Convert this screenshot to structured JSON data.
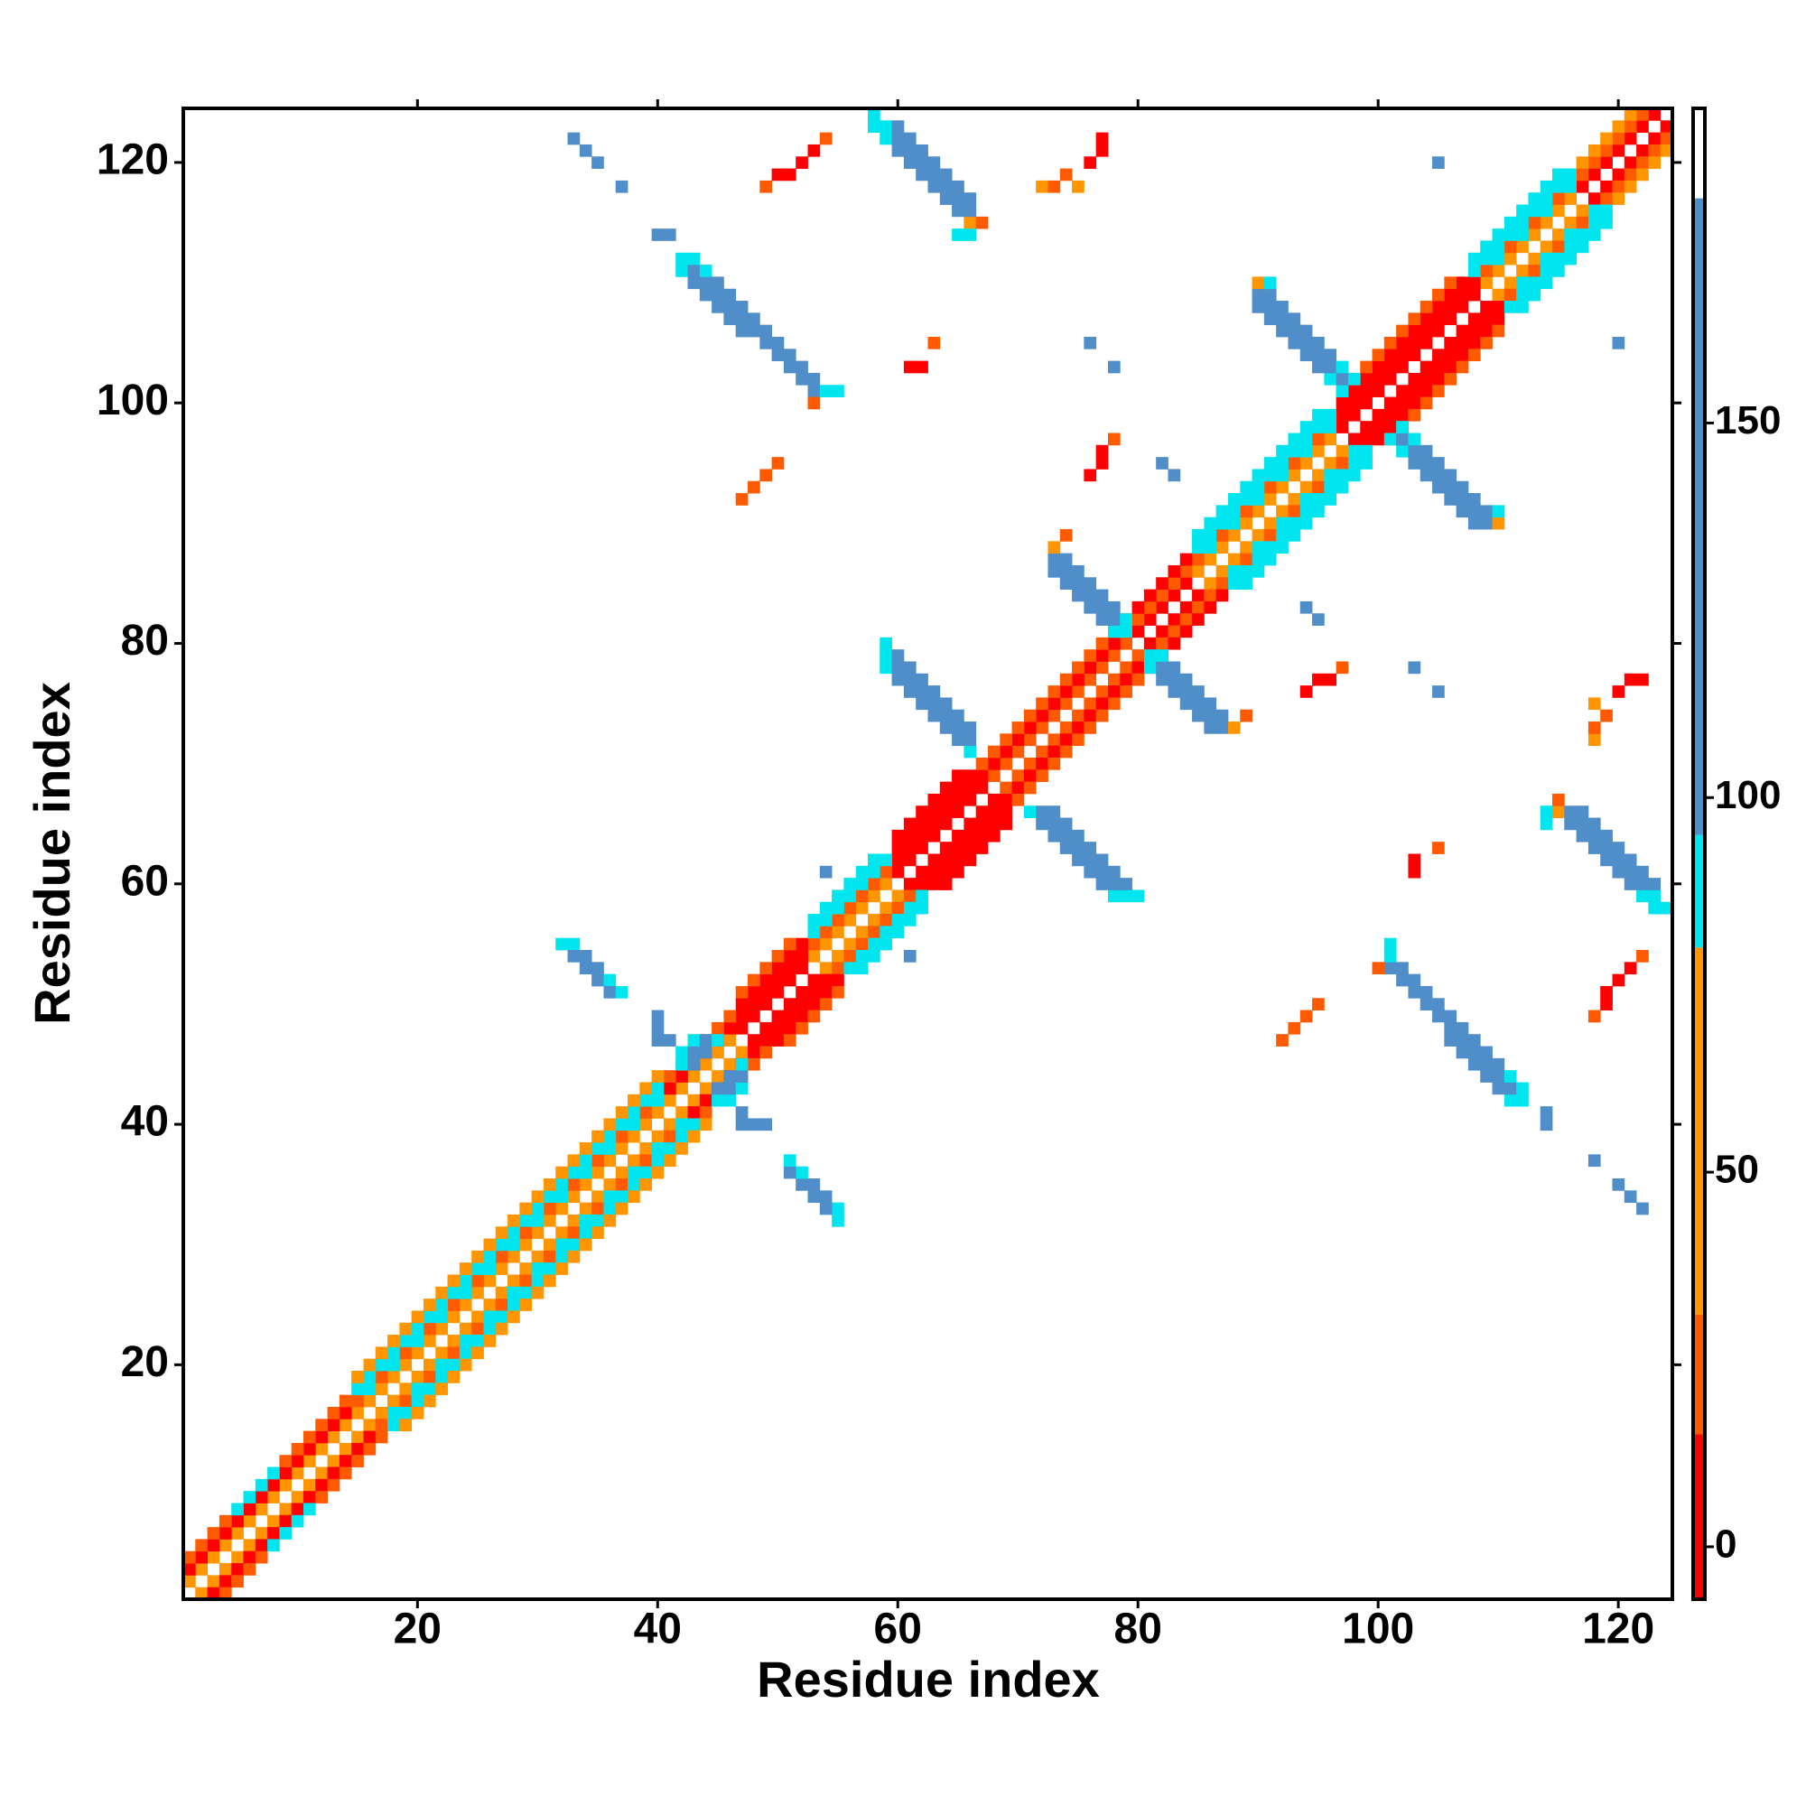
{
  "chart_data": {
    "type": "heatmap",
    "xlabel": "Residue index",
    "ylabel": "Residue index",
    "xlim": [
      0.5,
      124.5
    ],
    "ylim": [
      0.5,
      124.5
    ],
    "xticks": [
      20,
      40,
      60,
      80,
      100,
      120
    ],
    "yticks": [
      20,
      40,
      60,
      80,
      100,
      120
    ],
    "symmetric": true,
    "clim": [
      -7,
      192
    ],
    "cticks": [
      0,
      50,
      100,
      150
    ],
    "colorscale": [
      {
        "min": -7,
        "max": 15,
        "color": "#ff0000"
      },
      {
        "min": 15,
        "max": 31,
        "color": "#ff5a00"
      },
      {
        "min": 31,
        "max": 80,
        "color": "#ff9500"
      },
      {
        "min": 80,
        "max": 95,
        "color": "#00e5ee"
      },
      {
        "min": 95,
        "max": 180,
        "color": "#4f8ec9"
      },
      {
        "min": 180,
        "max": 192,
        "color": "#ffffff"
      }
    ],
    "bands": [
      {
        "offset": 1,
        "values": [
          50,
          50,
          50,
          50,
          50,
          50,
          50,
          50,
          50,
          50,
          50,
          50,
          50,
          50,
          50,
          50,
          50,
          50,
          50,
          50,
          50,
          50,
          50,
          50,
          50,
          50,
          50,
          50,
          50,
          50,
          50,
          50,
          50,
          50,
          50,
          50,
          50,
          50,
          50,
          50,
          50,
          50,
          50,
          50,
          50,
          50,
          5,
          5,
          5,
          5,
          5,
          5,
          50,
          50,
          50,
          50,
          50,
          50,
          50,
          5,
          5,
          5,
          5,
          5,
          5,
          5,
          5,
          25,
          25,
          25,
          25,
          25,
          25,
          25,
          25,
          25,
          25,
          25,
          25,
          5,
          5,
          5,
          5,
          5,
          50,
          50,
          50,
          50,
          50,
          50,
          50,
          50,
          50,
          50,
          50,
          50,
          5,
          5,
          5,
          5,
          5,
          5,
          5,
          5,
          5,
          5,
          5,
          5,
          50,
          50,
          50,
          50,
          50,
          50,
          50,
          50,
          5,
          5,
          5,
          5,
          5,
          5,
          5
        ]
      },
      {
        "offset": 2,
        "values": [
          5,
          5,
          5,
          5,
          5,
          5,
          5,
          5,
          5,
          5,
          5,
          5,
          5,
          5,
          25,
          90,
          25,
          90,
          25,
          90,
          25,
          90,
          25,
          90,
          25,
          90,
          25,
          90,
          25,
          90,
          25,
          90,
          25,
          90,
          25,
          90,
          25,
          90,
          25,
          90,
          5,
          5,
          5,
          5,
          5,
          5,
          5,
          5,
          5,
          5,
          5,
          5,
          25,
          25,
          25,
          25,
          25,
          25,
          25,
          5,
          5,
          5,
          5,
          5,
          5,
          5,
          5,
          5,
          5,
          5,
          5,
          5,
          5,
          5,
          5,
          5,
          5,
          5,
          5,
          25,
          25,
          25,
          25,
          25,
          25,
          90,
          25,
          90,
          25,
          90,
          25,
          90,
          25,
          90,
          25,
          90,
          5,
          5,
          5,
          5,
          5,
          5,
          5,
          5,
          5,
          5,
          5,
          5,
          25,
          90,
          25,
          90,
          25,
          90,
          25,
          90,
          25,
          25,
          25,
          25,
          25,
          25
        ]
      },
      {
        "offset": 3,
        "values": [
          25,
          25,
          25,
          25,
          90,
          90,
          90,
          90,
          25,
          25,
          25,
          25,
          25,
          25,
          90,
          90,
          90,
          90,
          90,
          90,
          90,
          90,
          90,
          90,
          90,
          90,
          90,
          90,
          90,
          90,
          90,
          90,
          90,
          90,
          90,
          90,
          90,
          90,
          90,
          90,
          25,
          25,
          25,
          25,
          25,
          25,
          5,
          5,
          5,
          5,
          5,
          5,
          90,
          90,
          90,
          90,
          90,
          90,
          90,
          5,
          5,
          5,
          5,
          5,
          5,
          5,
          25,
          25,
          25,
          25,
          25,
          25,
          25,
          25,
          25,
          25,
          25,
          25,
          25,
          5,
          5,
          5,
          5,
          5,
          90,
          90,
          90,
          90,
          90,
          90,
          90,
          90,
          90,
          90,
          90,
          90,
          5,
          5,
          5,
          5,
          5,
          5,
          5,
          5,
          5,
          5,
          5,
          90,
          90,
          90,
          90,
          90,
          90,
          90,
          90,
          90,
          50,
          50,
          50,
          50,
          50
        ]
      },
      {
        "offset": 4,
        "values": [
          null,
          null,
          null,
          null,
          null,
          null,
          null,
          null,
          null,
          null,
          null,
          null,
          null,
          null,
          50,
          50,
          50,
          50,
          50,
          50,
          50,
          50,
          50,
          50,
          50,
          50,
          50,
          50,
          50,
          50,
          50,
          50,
          50,
          50,
          50,
          50,
          50,
          50,
          50,
          50,
          null,
          null,
          null,
          null,
          null,
          null,
          25,
          25,
          25,
          25,
          25,
          null,
          90,
          90,
          90,
          90,
          90,
          90,
          null,
          5,
          5,
          5,
          5,
          5,
          5,
          null,
          null,
          null,
          null,
          null,
          null,
          null,
          null,
          null,
          null,
          null,
          null,
          null,
          null,
          null,
          null,
          null,
          null,
          null,
          90,
          90,
          90,
          90,
          90,
          90,
          90,
          90,
          90,
          90,
          90,
          null,
          25,
          25,
          25,
          25,
          25,
          25,
          25,
          25,
          25,
          25,
          null,
          90,
          90,
          90,
          90,
          90,
          90,
          90,
          90,
          null,
          null,
          null,
          null,
          null
        ]
      }
    ],
    "contacts": [
      [
        42,
        45,
        90
      ],
      [
        42,
        46,
        90
      ],
      [
        43,
        45,
        130
      ],
      [
        43,
        46,
        130
      ],
      [
        43,
        47,
        90
      ],
      [
        44,
        46,
        130
      ],
      [
        44,
        47,
        130
      ],
      [
        45,
        47,
        90
      ],
      [
        40,
        47,
        130
      ],
      [
        40,
        48,
        130
      ],
      [
        40,
        49,
        130
      ],
      [
        41,
        47,
        130
      ],
      [
        32,
        55,
        90
      ],
      [
        33,
        55,
        90
      ],
      [
        33,
        54,
        130
      ],
      [
        34,
        54,
        130
      ],
      [
        34,
        53,
        130
      ],
      [
        35,
        53,
        130
      ],
      [
        35,
        52,
        130
      ],
      [
        36,
        52,
        90
      ],
      [
        36,
        51,
        130
      ],
      [
        37,
        51,
        90
      ],
      [
        59,
        78,
        90
      ],
      [
        59,
        79,
        90
      ],
      [
        59,
        80,
        90
      ],
      [
        60,
        77,
        130
      ],
      [
        60,
        78,
        130
      ],
      [
        60,
        79,
        130
      ],
      [
        61,
        76,
        130
      ],
      [
        61,
        77,
        130
      ],
      [
        61,
        78,
        130
      ],
      [
        62,
        75,
        130
      ],
      [
        62,
        76,
        130
      ],
      [
        62,
        77,
        130
      ],
      [
        63,
        74,
        130
      ],
      [
        63,
        75,
        130
      ],
      [
        63,
        76,
        130
      ],
      [
        64,
        73,
        130
      ],
      [
        64,
        74,
        130
      ],
      [
        64,
        75,
        130
      ],
      [
        65,
        72,
        130
      ],
      [
        65,
        73,
        130
      ],
      [
        65,
        74,
        130
      ],
      [
        66,
        71,
        90
      ],
      [
        66,
        72,
        130
      ],
      [
        66,
        73,
        130
      ],
      [
        73,
        86,
        130
      ],
      [
        73,
        87,
        130
      ],
      [
        73,
        88,
        50
      ],
      [
        74,
        85,
        130
      ],
      [
        74,
        86,
        130
      ],
      [
        74,
        87,
        130
      ],
      [
        74,
        89,
        25
      ],
      [
        75,
        84,
        130
      ],
      [
        75,
        85,
        130
      ],
      [
        75,
        86,
        130
      ],
      [
        76,
        83,
        130
      ],
      [
        76,
        84,
        130
      ],
      [
        76,
        85,
        130
      ],
      [
        77,
        82,
        130
      ],
      [
        77,
        83,
        130
      ],
      [
        77,
        84,
        130
      ],
      [
        78,
        81,
        90
      ],
      [
        78,
        82,
        130
      ],
      [
        78,
        83,
        130
      ],
      [
        79,
        81,
        90
      ],
      [
        79,
        82,
        90
      ],
      [
        90,
        108,
        130
      ],
      [
        90,
        109,
        130
      ],
      [
        90,
        110,
        50
      ],
      [
        91,
        107,
        130
      ],
      [
        91,
        108,
        130
      ],
      [
        91,
        109,
        130
      ],
      [
        91,
        110,
        90
      ],
      [
        92,
        106,
        130
      ],
      [
        92,
        107,
        130
      ],
      [
        92,
        108,
        130
      ],
      [
        93,
        105,
        130
      ],
      [
        93,
        106,
        130
      ],
      [
        93,
        107,
        130
      ],
      [
        94,
        104,
        130
      ],
      [
        94,
        105,
        130
      ],
      [
        94,
        106,
        130
      ],
      [
        95,
        103,
        130
      ],
      [
        95,
        104,
        130
      ],
      [
        95,
        105,
        130
      ],
      [
        96,
        102,
        90
      ],
      [
        96,
        103,
        130
      ],
      [
        96,
        104,
        130
      ],
      [
        97,
        101,
        90
      ],
      [
        97,
        102,
        130
      ],
      [
        97,
        103,
        90
      ],
      [
        98,
        102,
        90
      ],
      [
        42,
        111,
        90
      ],
      [
        42,
        112,
        90
      ],
      [
        43,
        110,
        130
      ],
      [
        43,
        111,
        130
      ],
      [
        43,
        112,
        90
      ],
      [
        44,
        109,
        130
      ],
      [
        44,
        110,
        130
      ],
      [
        44,
        111,
        90
      ],
      [
        45,
        108,
        130
      ],
      [
        45,
        109,
        130
      ],
      [
        45,
        110,
        130
      ],
      [
        46,
        107,
        130
      ],
      [
        46,
        108,
        130
      ],
      [
        46,
        109,
        130
      ],
      [
        47,
        106,
        130
      ],
      [
        47,
        107,
        130
      ],
      [
        47,
        108,
        130
      ],
      [
        48,
        106,
        130
      ],
      [
        48,
        107,
        130
      ],
      [
        49,
        105,
        130
      ],
      [
        49,
        106,
        130
      ],
      [
        50,
        104,
        130
      ],
      [
        50,
        105,
        130
      ],
      [
        51,
        103,
        130
      ],
      [
        51,
        104,
        130
      ],
      [
        52,
        102,
        130
      ],
      [
        52,
        103,
        130
      ],
      [
        53,
        101,
        130
      ],
      [
        53,
        102,
        130
      ],
      [
        54,
        101,
        90
      ],
      [
        55,
        101,
        90
      ],
      [
        53,
        100,
        25
      ],
      [
        58,
        123,
        90
      ],
      [
        58,
        124,
        90
      ],
      [
        59,
        122,
        90
      ],
      [
        59,
        123,
        90
      ],
      [
        60,
        121,
        130
      ],
      [
        60,
        122,
        130
      ],
      [
        60,
        123,
        130
      ],
      [
        61,
        120,
        130
      ],
      [
        61,
        121,
        130
      ],
      [
        61,
        122,
        130
      ],
      [
        62,
        119,
        130
      ],
      [
        62,
        120,
        130
      ],
      [
        62,
        121,
        130
      ],
      [
        63,
        118,
        130
      ],
      [
        63,
        119,
        130
      ],
      [
        63,
        120,
        130
      ],
      [
        64,
        117,
        130
      ],
      [
        64,
        118,
        130
      ],
      [
        64,
        119,
        130
      ],
      [
        65,
        116,
        130
      ],
      [
        65,
        117,
        130
      ],
      [
        65,
        118,
        130
      ],
      [
        66,
        115,
        50
      ],
      [
        66,
        116,
        130
      ],
      [
        66,
        117,
        130
      ],
      [
        65,
        114,
        90
      ],
      [
        66,
        114,
        90
      ],
      [
        67,
        115,
        25
      ],
      [
        33,
        122,
        130
      ],
      [
        34,
        121,
        130
      ],
      [
        35,
        120,
        130
      ],
      [
        37,
        118,
        130
      ],
      [
        40,
        114,
        130
      ],
      [
        41,
        114,
        130
      ],
      [
        49,
        118,
        25
      ],
      [
        50,
        119,
        5
      ],
      [
        51,
        119,
        5
      ],
      [
        52,
        120,
        5
      ],
      [
        53,
        121,
        5
      ],
      [
        54,
        122,
        25
      ],
      [
        47,
        92,
        25
      ],
      [
        48,
        93,
        25
      ],
      [
        49,
        94,
        25
      ],
      [
        50,
        95,
        25
      ],
      [
        72,
        118,
        50
      ],
      [
        73,
        118,
        25
      ],
      [
        74,
        119,
        25
      ],
      [
        75,
        118,
        50
      ],
      [
        76,
        120,
        5
      ],
      [
        77,
        121,
        5
      ],
      [
        77,
        122,
        5
      ],
      [
        61,
        103,
        5
      ],
      [
        62,
        103,
        5
      ],
      [
        63,
        105,
        25
      ],
      [
        76,
        94,
        5
      ],
      [
        77,
        95,
        5
      ],
      [
        77,
        96,
        5
      ],
      [
        78,
        97,
        25
      ],
      [
        82,
        95,
        130
      ],
      [
        83,
        94,
        130
      ],
      [
        76,
        105,
        130
      ],
      [
        78,
        103,
        130
      ],
      [
        105,
        120,
        130
      ],
      [
        54,
        61,
        130
      ]
    ]
  }
}
